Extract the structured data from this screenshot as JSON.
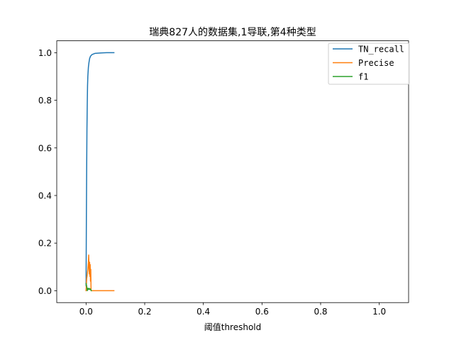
{
  "chart_data": {
    "type": "line",
    "title": "瑞典827人的数据集,1导联,第4种类型",
    "xlabel": "阈值threshold",
    "ylabel": "",
    "xlim": [
      -0.1,
      1.1
    ],
    "ylim": [
      -0.05,
      1.05
    ],
    "xticks": [
      0.0,
      0.2,
      0.4,
      0.6,
      0.8,
      1.0
    ],
    "xtick_labels": [
      "0.0",
      "0.2",
      "0.4",
      "0.6",
      "0.8",
      "1.0"
    ],
    "yticks": [
      0.0,
      0.2,
      0.4,
      0.6,
      0.8,
      1.0
    ],
    "ytick_labels": [
      "0.0",
      "0.2",
      "0.4",
      "0.6",
      "0.8",
      "1.0"
    ],
    "grid": false,
    "legend": "top-right",
    "series": [
      {
        "name": "TN_recall",
        "color": "#1f77b4",
        "x": [
          0.0,
          0.001,
          0.002,
          0.003,
          0.004,
          0.005,
          0.006,
          0.008,
          0.01,
          0.012,
          0.015,
          0.02,
          0.03,
          0.05,
          0.07,
          0.095
        ],
        "y": [
          0.02,
          0.3,
          0.5,
          0.68,
          0.78,
          0.86,
          0.9,
          0.94,
          0.96,
          0.975,
          0.985,
          0.992,
          0.997,
          0.999,
          1.0,
          1.0
        ]
      },
      {
        "name": "Precise",
        "color": "#ff7f0e",
        "x": [
          0.0,
          0.002,
          0.004,
          0.006,
          0.008,
          0.009,
          0.01,
          0.011,
          0.012,
          0.013,
          0.014,
          0.015,
          0.016,
          0.017,
          0.018,
          0.02,
          0.03,
          0.05,
          0.07,
          0.095
        ],
        "y": [
          0.0,
          0.05,
          0.07,
          0.09,
          0.12,
          0.15,
          0.1,
          0.07,
          0.12,
          0.06,
          0.11,
          0.04,
          0.09,
          0.0,
          0.0,
          0.0,
          0.0,
          0.0,
          0.0,
          0.0
        ]
      },
      {
        "name": "f1",
        "color": "#2ca02c",
        "x": [
          0.0,
          0.002,
          0.004,
          0.006,
          0.008,
          0.01,
          0.012,
          0.014,
          0.016,
          0.018
        ],
        "y": [
          0.03,
          0.02,
          0.0,
          0.01,
          0.005,
          0.01,
          0.005,
          0.008,
          0.004,
          0.0
        ]
      }
    ]
  }
}
